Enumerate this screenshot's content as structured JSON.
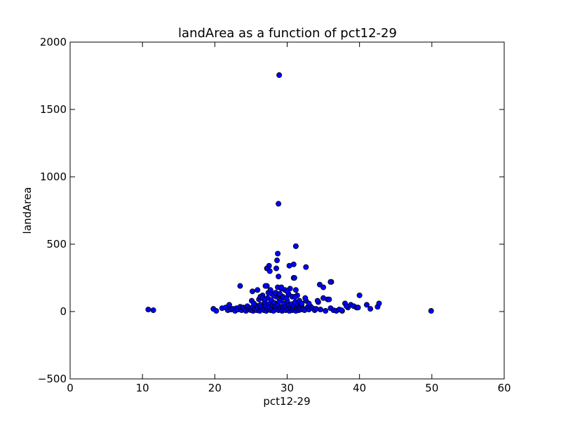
{
  "chart_data": {
    "type": "scatter",
    "title": "landArea as a function of pct12-29",
    "xlabel": "pct12-29",
    "ylabel": "landArea",
    "xlim": [
      0,
      60
    ],
    "ylim": [
      -500,
      2000
    ],
    "xticks": [
      0,
      10,
      20,
      30,
      40,
      50,
      60
    ],
    "xtick_labels": [
      "0",
      "10",
      "20",
      "30",
      "40",
      "50",
      "60"
    ],
    "yticks": [
      -500,
      0,
      500,
      1000,
      1500,
      2000
    ],
    "ytick_labels": [
      "−500",
      "0",
      "500",
      "1000",
      "1500",
      "2000"
    ],
    "grid": false,
    "legend": "none",
    "marker_color": "#0000ff",
    "marker_edge_color": "#000000",
    "x": [
      10.8,
      11.5,
      19.8,
      20.2,
      21.0,
      21.5,
      21.8,
      22.0,
      22.2,
      22.5,
      22.8,
      23.0,
      23.2,
      23.5,
      23.7,
      23.9,
      24.1,
      24.3,
      24.5,
      24.7,
      24.9,
      25.0,
      25.1,
      25.2,
      25.3,
      25.4,
      25.5,
      25.6,
      25.7,
      25.8,
      25.9,
      26.0,
      26.1,
      26.2,
      26.3,
      26.4,
      26.5,
      26.6,
      26.7,
      26.8,
      26.9,
      27.0,
      27.1,
      27.2,
      27.3,
      27.4,
      27.5,
      27.6,
      27.7,
      27.8,
      27.9,
      28.0,
      28.1,
      28.2,
      28.3,
      28.4,
      28.5,
      28.6,
      28.7,
      28.8,
      28.9,
      29.0,
      29.1,
      29.2,
      29.3,
      29.4,
      29.5,
      29.6,
      29.7,
      29.8,
      29.9,
      30.0,
      30.1,
      30.2,
      30.3,
      30.4,
      30.5,
      30.6,
      30.7,
      30.8,
      30.9,
      31.0,
      31.1,
      31.2,
      31.3,
      31.4,
      31.5,
      31.6,
      31.7,
      31.8,
      31.9,
      32.0,
      32.2,
      32.4,
      32.6,
      32.8,
      33.0,
      33.2,
      33.5,
      33.8,
      34.0,
      34.3,
      34.6,
      35.0,
      35.3,
      35.6,
      36.0,
      36.4,
      36.8,
      37.2,
      37.6,
      38.0,
      38.4,
      38.8,
      39.2,
      39.6,
      40.0,
      41.0,
      41.5,
      42.5,
      42.7,
      49.9,
      23.5,
      25.2,
      25.9,
      26.3,
      26.6,
      26.9,
      27.2,
      27.4,
      27.7,
      27.9,
      28.2,
      28.4,
      28.7,
      28.9,
      29.2,
      29.4,
      29.7,
      29.9,
      30.2,
      30.4,
      30.7,
      30.9,
      31.2,
      31.4,
      31.7,
      32.0,
      32.5,
      33.0,
      34.2,
      35.8,
      36.1,
      37.5,
      38.2,
      39.8,
      27.0,
      27.2,
      27.5,
      28.6,
      28.8,
      30.3,
      30.9,
      31.0,
      32.6,
      34.5,
      35.0,
      36.0,
      28.5,
      29.2,
      30.0,
      31.1,
      27.3,
      27.6,
      29.0,
      28.7,
      31.2,
      28.8,
      28.9
    ],
    "y": [
      15,
      10,
      20,
      5,
      25,
      30,
      10,
      50,
      15,
      20,
      5,
      25,
      15,
      35,
      10,
      30,
      20,
      5,
      40,
      15,
      25,
      10,
      80,
      30,
      5,
      60,
      20,
      15,
      45,
      10,
      35,
      25,
      90,
      5,
      50,
      15,
      30,
      120,
      20,
      10,
      70,
      40,
      5,
      25,
      100,
      15,
      55,
      30,
      10,
      85,
      20,
      45,
      5,
      65,
      35,
      15,
      110,
      25,
      50,
      10,
      75,
      30,
      20,
      95,
      5,
      40,
      15,
      60,
      25,
      10,
      35,
      80,
      15,
      45,
      5,
      30,
      20,
      55,
      10,
      25,
      40,
      15,
      70,
      5,
      30,
      20,
      45,
      10,
      35,
      25,
      15,
      50,
      20,
      10,
      80,
      30,
      15,
      40,
      25,
      10,
      20,
      70,
      15,
      100,
      5,
      90,
      25,
      10,
      5,
      15,
      5,
      60,
      30,
      50,
      40,
      30,
      120,
      50,
      20,
      35,
      60,
      5,
      190,
      150,
      160,
      110,
      100,
      90,
      190,
      140,
      160,
      130,
      120,
      140,
      180,
      130,
      170,
      110,
      160,
      100,
      130,
      170,
      110,
      250,
      160,
      120,
      80,
      60,
      100,
      60,
      80,
      90,
      220,
      10,
      40,
      30,
      190,
      320,
      340,
      380,
      260,
      340,
      350,
      250,
      330,
      200,
      180,
      220,
      320,
      180,
      150,
      110,
      320,
      300,
      130,
      430,
      485,
      800,
      1755
    ]
  }
}
